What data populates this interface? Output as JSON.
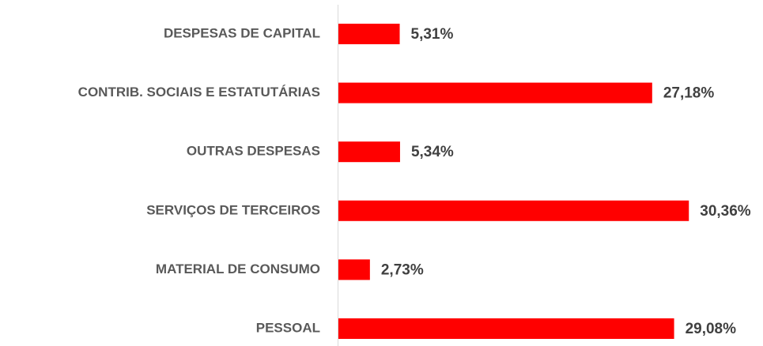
{
  "chart_data": {
    "type": "bar",
    "orientation": "horizontal",
    "categories": [
      "DESPESAS DE CAPITAL",
      "CONTRIB. SOCIAIS E ESTATUTÁRIAS",
      "OUTRAS DESPESAS",
      "SERVIÇOS DE TERCEIROS",
      "MATERIAL DE CONSUMO",
      "PESSOAL"
    ],
    "values": [
      5.31,
      27.18,
      5.34,
      30.36,
      2.73,
      29.08
    ],
    "value_labels": [
      "5,31%",
      "27,18%",
      "5,34%",
      "30,36%",
      "2,73%",
      "29,08%"
    ],
    "color": "#ff0000"
  }
}
